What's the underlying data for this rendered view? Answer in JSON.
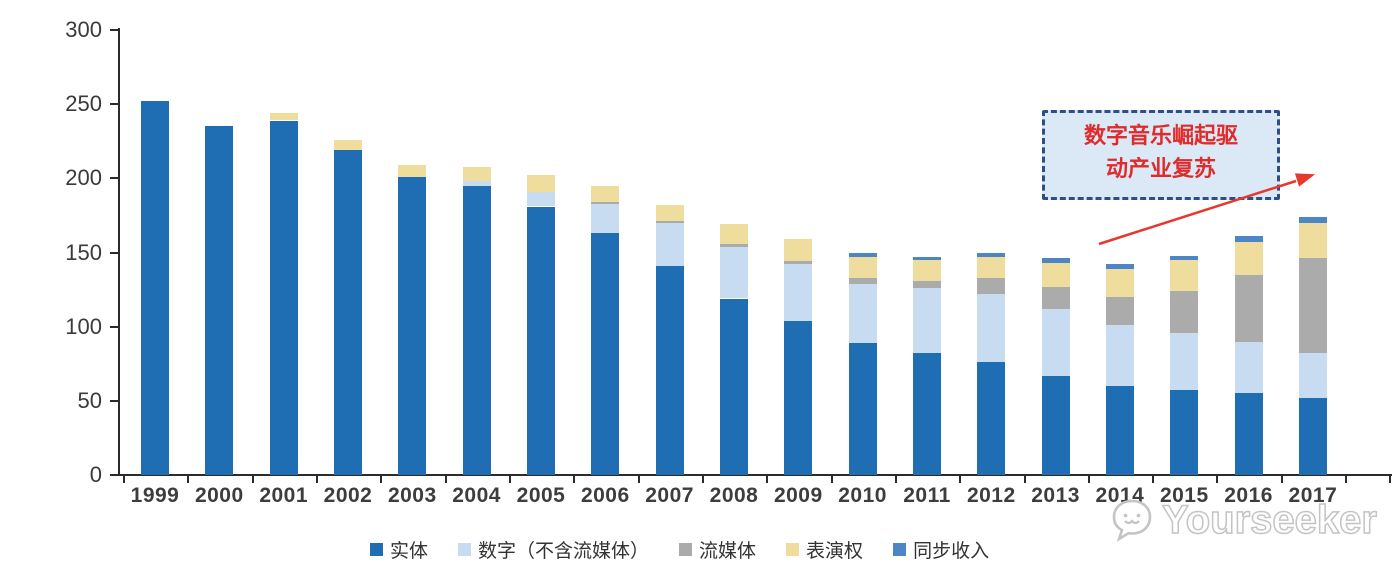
{
  "chart_data": {
    "type": "bar",
    "stacked": true,
    "title": "",
    "xlabel": "",
    "ylabel": "",
    "categories": [
      "1999",
      "2000",
      "2001",
      "2002",
      "2003",
      "2004",
      "2005",
      "2006",
      "2007",
      "2008",
      "2009",
      "2010",
      "2011",
      "2012",
      "2013",
      "2014",
      "2015",
      "2016",
      "2017"
    ],
    "series": [
      {
        "name": "实体",
        "color": "#1f6db3",
        "values": [
          252,
          235,
          239,
          219,
          201,
          195,
          181,
          163,
          141,
          119,
          104,
          89,
          82,
          76,
          67,
          60,
          57,
          55,
          52
        ]
      },
      {
        "name": "数字（不含流媒体）",
        "color": "#c7dcf0",
        "values": [
          0,
          0,
          0,
          0,
          0,
          3,
          10,
          20,
          29,
          35,
          38,
          40,
          44,
          46,
          45,
          41,
          39,
          35,
          30
        ]
      },
      {
        "name": "流媒体",
        "color": "#ababab",
        "values": [
          0,
          0,
          0,
          0,
          0,
          0,
          0,
          1,
          1,
          2,
          2,
          4,
          5,
          11,
          15,
          19,
          28,
          45,
          64
        ]
      },
      {
        "name": "表演权",
        "color": "#eedd9d",
        "values": [
          0,
          0,
          5,
          7,
          8,
          10,
          11,
          11,
          11,
          13,
          15,
          14,
          14,
          14,
          16,
          19,
          21,
          22,
          24
        ]
      },
      {
        "name": "同步收入",
        "color": "#4c86c6",
        "values": [
          0,
          0,
          0,
          0,
          0,
          0,
          0,
          0,
          0,
          0,
          0,
          3,
          2,
          3,
          3,
          3,
          3,
          4,
          4
        ]
      }
    ],
    "ylim": [
      0,
      300
    ],
    "yticks": [
      0,
      50,
      100,
      150,
      200,
      250,
      300
    ],
    "grid": false,
    "legend_position": "bottom",
    "axis_color": "#2b2b2b",
    "tick_label_color": "#3a3a3a"
  },
  "annotation": {
    "lines": [
      "数字音乐崛起驱",
      "动产业复苏"
    ],
    "text_color": "#df2b2b",
    "border_color": "#2e4e86",
    "fill_color": "#dbe8f6",
    "arrow_color": "#e8372f"
  },
  "watermark": {
    "text": "Yourseeker",
    "logo": "cat-speech-bubble-logo",
    "color": "#c4c4c4"
  }
}
